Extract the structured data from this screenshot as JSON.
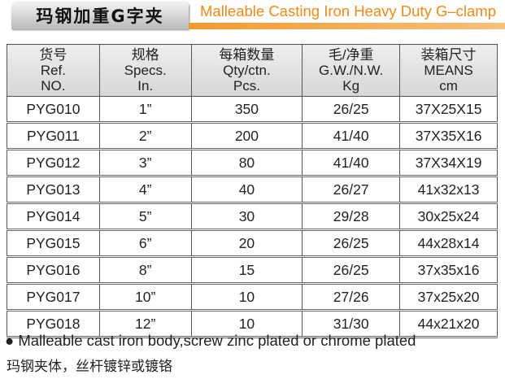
{
  "header": {
    "title_cn": "玛钢加重G字夹",
    "title_en": "Malleable Casting Iron Heavy Duty G–clamp"
  },
  "table": {
    "columns": [
      [
        "货号",
        "Ref.",
        "NO."
      ],
      [
        "规格",
        "Specs.",
        "In."
      ],
      [
        "每箱数量",
        "Qty/ctn.",
        "Pcs."
      ],
      [
        "毛/净重",
        "G.W./N.W.",
        "Kg"
      ],
      [
        "装箱尺寸",
        "MEANS",
        "cm"
      ]
    ],
    "rows": [
      [
        "PYG010",
        "1”",
        "350",
        "26/25",
        "37X25X15"
      ],
      [
        "PYG011",
        "2”",
        "200",
        "41/40",
        "37X35X16"
      ],
      [
        "PYG012",
        "3”",
        "80",
        "41/40",
        "37X34X19"
      ],
      [
        "PYG013",
        "4”",
        "40",
        "26/27",
        "41x32x13"
      ],
      [
        "PYG014",
        "5”",
        "30",
        "29/28",
        "30x25x24"
      ],
      [
        "PYG015",
        "6”",
        "20",
        "26/25",
        "44x28x14"
      ],
      [
        "PYG016",
        "8”",
        "15",
        "26/25",
        "37x35x16"
      ],
      [
        "PYG017",
        "10”",
        "10",
        "27/26",
        "37x25x20"
      ],
      [
        "PYG018",
        "12”",
        "10",
        "31/30",
        "44x21x20"
      ]
    ]
  },
  "footer": {
    "bullet": "Malleable cast iron body,screw zinc plated or chrome plated",
    "note_cn": "玛钢夹体，丝杆镀锌或镀铬"
  }
}
